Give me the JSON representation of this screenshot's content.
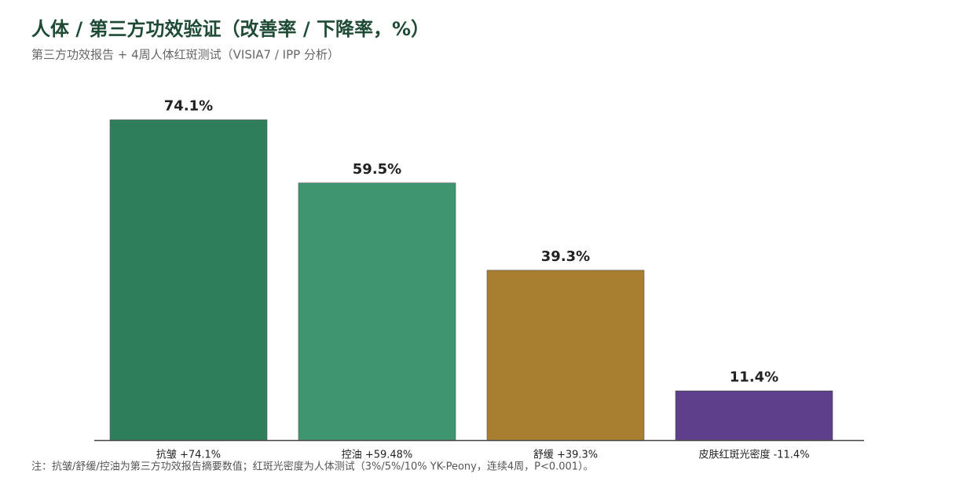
{
  "chart_data": {
    "type": "bar",
    "title": "人体 / 第三方功效验证（改善率 / 下降率，%）",
    "subtitle": "第三方功效报告 + 4周人体红斑测试（VISIA7 / IPP 分析）",
    "categories": [
      "抗皱 +74.1%",
      "控油 +59.48%",
      "舒缓 +39.3%",
      "皮肤红斑光密度 -11.4%"
    ],
    "values": [
      74.1,
      59.5,
      39.3,
      11.4
    ],
    "value_labels": [
      "74.1%",
      "59.5%",
      "39.3%",
      "11.4%"
    ],
    "colors": [
      "#2e7d5b",
      "#3f9570",
      "#a87f30",
      "#5e3f8b"
    ],
    "ylim": [
      0,
      80
    ],
    "note": "注：抗皱/舒缓/控油为第三方功效报告摘要数值；红斑光密度为人体测试（3%/5%/10% YK-Peony，连续4周，P<0.001）。"
  }
}
